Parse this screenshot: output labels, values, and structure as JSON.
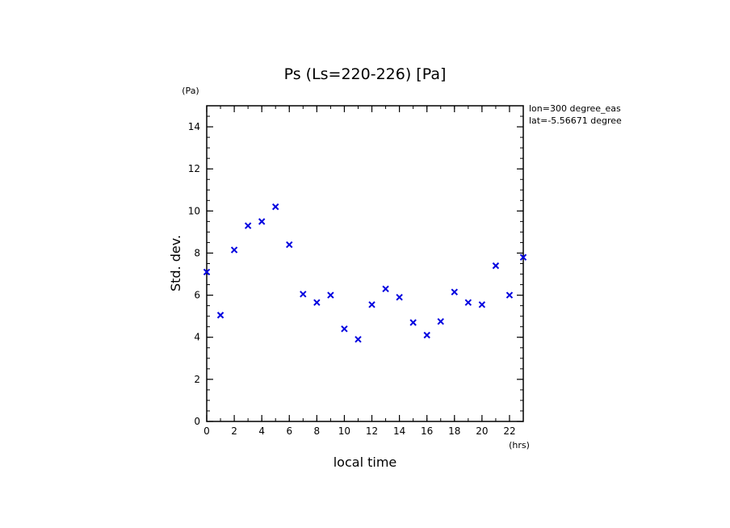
{
  "chart_data": {
    "type": "scatter",
    "title": "Ps (Ls=220-226) [Pa]",
    "xlabel": "local time",
    "ylabel": "Std. dev.",
    "x_unit": "(hrs)",
    "y_unit": "(Pa)",
    "xlim": [
      0,
      23
    ],
    "ylim": [
      0,
      15
    ],
    "x_ticks": [
      0,
      2,
      4,
      6,
      8,
      10,
      12,
      14,
      16,
      18,
      20,
      22
    ],
    "y_ticks": [
      0,
      2,
      4,
      6,
      8,
      10,
      12,
      14
    ],
    "info_lines": [
      "lon=300 degree_eas",
      "lat=-5.56671 degree"
    ],
    "marker_color": "#0000e0",
    "grid": false,
    "series": [
      {
        "x": [
          0,
          1,
          2,
          3,
          4,
          5,
          6,
          7,
          8,
          9,
          10,
          11,
          12,
          13,
          14,
          15,
          16,
          17,
          18,
          19,
          20,
          21,
          22,
          23
        ],
        "y": [
          7.1,
          5.05,
          8.15,
          9.3,
          9.5,
          10.2,
          8.4,
          6.05,
          5.65,
          6.0,
          4.4,
          3.9,
          5.55,
          6.3,
          5.9,
          4.7,
          4.1,
          4.75,
          6.15,
          5.65,
          5.55,
          7.4,
          6.0,
          7.8
        ]
      }
    ]
  }
}
